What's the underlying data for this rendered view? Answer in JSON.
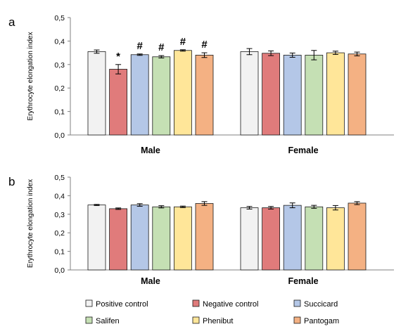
{
  "colors": {
    "Positive control": "#f2f2f2",
    "Negative control": "#e07b7b",
    "Succicard": "#b4c7e7",
    "Salifen": "#c5e0b4",
    "Phenibut": "#ffe699",
    "Pantogam": "#f4b183"
  },
  "legend": [
    "Positive control",
    "Negative control",
    "Succicard",
    "Salifen",
    "Phenibut",
    "Pantogam"
  ],
  "chart_data": [
    {
      "type": "bar",
      "panel": "a",
      "ylabel": "Erythrocyte elongation index",
      "ylim": [
        0,
        0.5
      ],
      "yticks": [
        "0,0",
        "0,1",
        "0,2",
        "0,3",
        "0,4",
        "0,5"
      ],
      "categories": [
        "Male",
        "Female"
      ],
      "series": [
        {
          "name": "Positive control",
          "values": [
            0.355,
            0.355
          ],
          "errors": [
            0.007,
            0.013
          ],
          "markers": [
            "",
            ""
          ]
        },
        {
          "name": "Negative control",
          "values": [
            0.28,
            0.348
          ],
          "errors": [
            0.02,
            0.01
          ],
          "markers": [
            "*",
            ""
          ]
        },
        {
          "name": "Succicard",
          "values": [
            0.342,
            0.34
          ],
          "errors": [
            0.003,
            0.009
          ],
          "markers": [
            "#",
            ""
          ]
        },
        {
          "name": "Salifen",
          "values": [
            0.333,
            0.34
          ],
          "errors": [
            0.005,
            0.02
          ],
          "markers": [
            "#",
            ""
          ]
        },
        {
          "name": "Phenibut",
          "values": [
            0.36,
            0.35
          ],
          "errors": [
            0.003,
            0.007
          ],
          "markers": [
            "#",
            ""
          ]
        },
        {
          "name": "Pantogam",
          "values": [
            0.34,
            0.345
          ],
          "errors": [
            0.01,
            0.008
          ],
          "markers": [
            "#",
            ""
          ]
        }
      ]
    },
    {
      "type": "bar",
      "panel": "b",
      "ylabel": "Erythrocyte elongation index",
      "ylim": [
        0,
        0.5
      ],
      "yticks": [
        "0,0",
        "0,1",
        "0,2",
        "0,3",
        "0,4",
        "0,5"
      ],
      "categories": [
        "Male",
        "Female"
      ],
      "series": [
        {
          "name": "Positive control",
          "values": [
            0.35,
            0.335
          ],
          "errors": [
            0.003,
            0.007
          ],
          "markers": [
            "",
            ""
          ]
        },
        {
          "name": "Negative control",
          "values": [
            0.33,
            0.335
          ],
          "errors": [
            0.004,
            0.007
          ],
          "markers": [
            "",
            ""
          ]
        },
        {
          "name": "Succicard",
          "values": [
            0.35,
            0.348
          ],
          "errors": [
            0.007,
            0.013
          ],
          "markers": [
            "",
            ""
          ]
        },
        {
          "name": "Salifen",
          "values": [
            0.34,
            0.34
          ],
          "errors": [
            0.006,
            0.008
          ],
          "markers": [
            "",
            ""
          ]
        },
        {
          "name": "Phenibut",
          "values": [
            0.34,
            0.335
          ],
          "errors": [
            0.004,
            0.012
          ],
          "markers": [
            "",
            ""
          ]
        },
        {
          "name": "Pantogam",
          "values": [
            0.358,
            0.36
          ],
          "errors": [
            0.01,
            0.008
          ],
          "markers": [
            "",
            ""
          ]
        }
      ]
    }
  ]
}
